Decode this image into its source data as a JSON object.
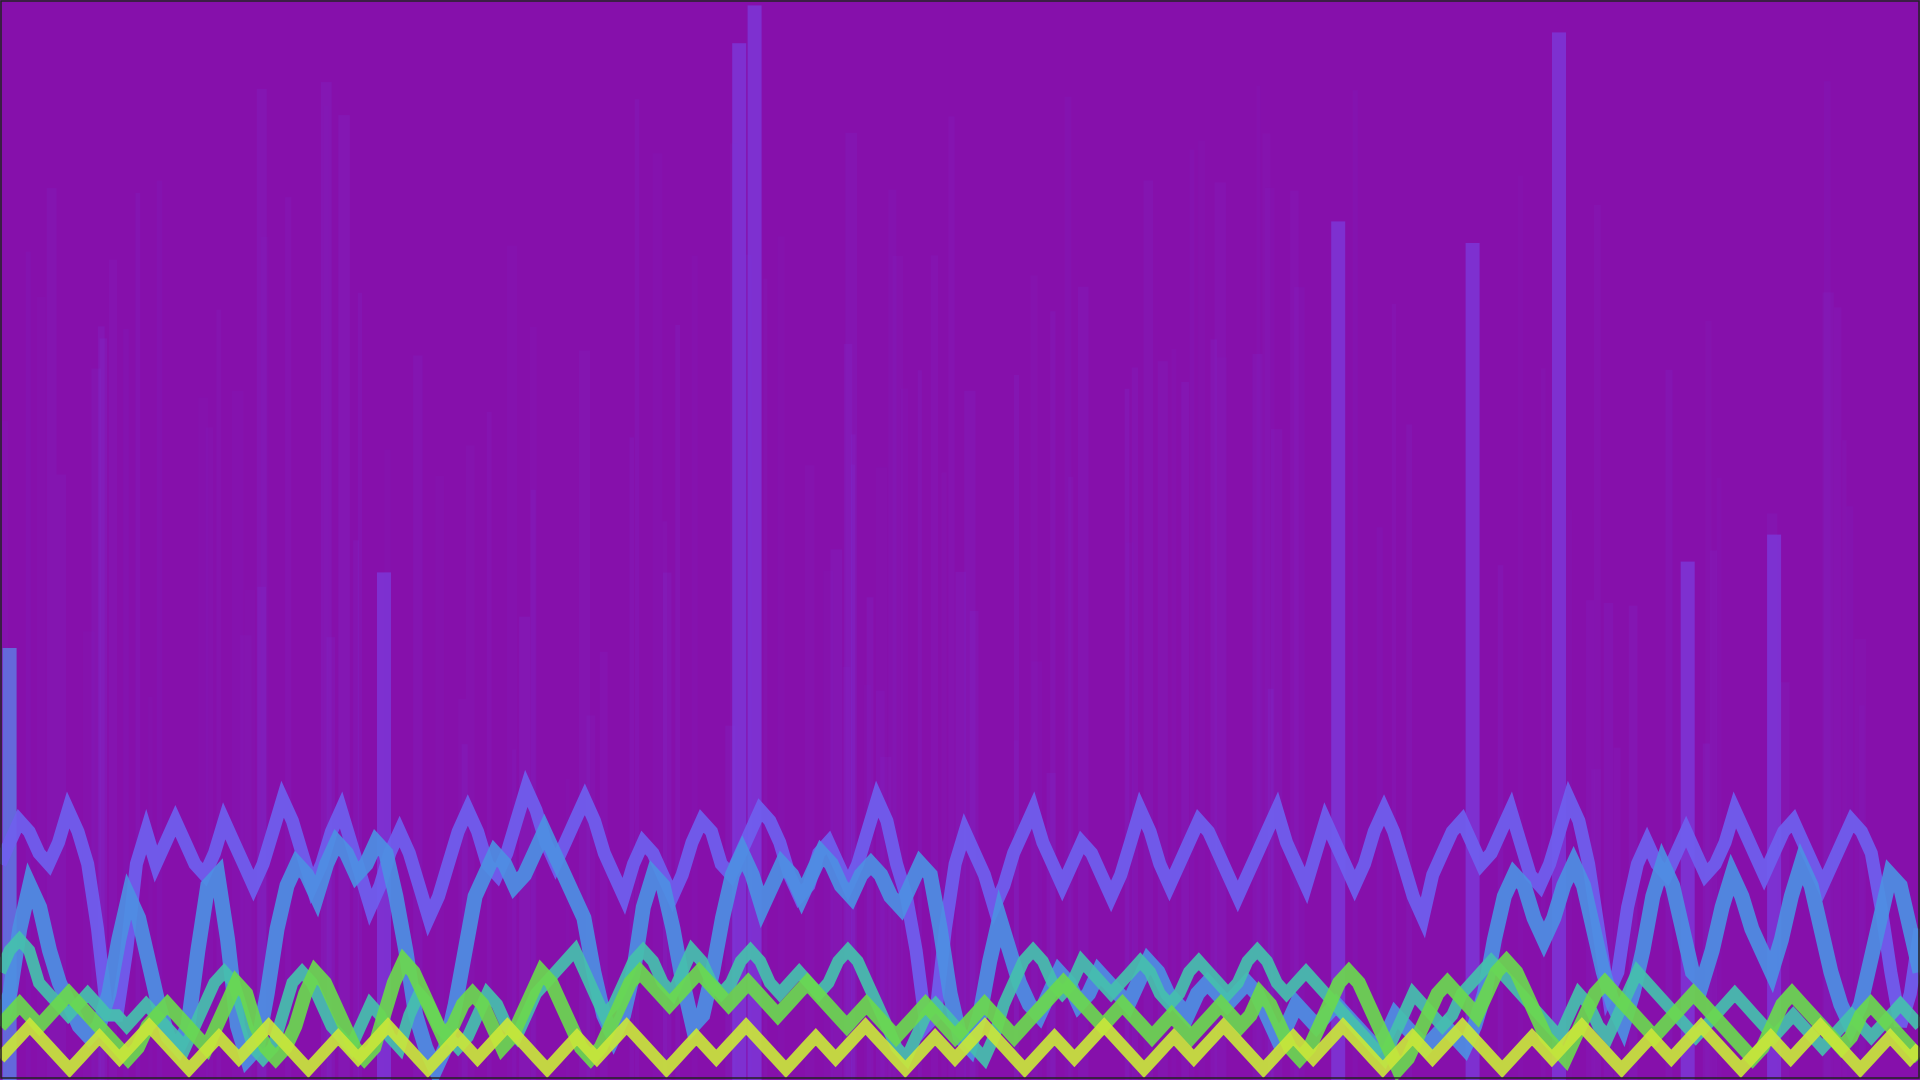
{
  "colors": {
    "background": "#8610ab",
    "frame": "#222222",
    "colormap": [
      "#7214aa",
      "#7b3bdc",
      "#6f5fee",
      "#5a86ea",
      "#3fa9d8",
      "#3cc8a2",
      "#6ae060",
      "#bfe83c"
    ]
  },
  "chart_data": {
    "type": "line",
    "title": "",
    "xlabel": "",
    "ylabel": "",
    "grid": false,
    "legend": "none",
    "x_range": [
      0,
      1
    ],
    "y_range": [
      0,
      1
    ],
    "spikes": [
      {
        "x": 0.005,
        "height": 0.4,
        "color": "#5a86ea"
      },
      {
        "x": 0.2,
        "height": 0.47,
        "color": "#7b3bdc"
      },
      {
        "x": 0.385,
        "height": 0.96,
        "color": "#7b3bdc"
      },
      {
        "x": 0.393,
        "height": 0.995,
        "color": "#7b3bdc"
      },
      {
        "x": 0.697,
        "height": 0.795,
        "color": "#7b3bdc"
      },
      {
        "x": 0.767,
        "height": 0.775,
        "color": "#7b3bdc"
      },
      {
        "x": 0.812,
        "height": 0.97,
        "color": "#7b3bdc"
      },
      {
        "x": 0.879,
        "height": 0.48,
        "color": "#7b3bdc"
      },
      {
        "x": 0.924,
        "height": 0.505,
        "color": "#7b3bdc"
      }
    ],
    "series": [
      {
        "color": "#6f5fee",
        "width": 13,
        "values": [
          0.2,
          0.22,
          0.24,
          0.23,
          0.21,
          0.2,
          0.22,
          0.25,
          0.23,
          0.2,
          0.14,
          0.06,
          0.06,
          0.12,
          0.2,
          0.23,
          0.2,
          0.22,
          0.24,
          0.22,
          0.2,
          0.19,
          0.21,
          0.24,
          0.22,
          0.2,
          0.18,
          0.2,
          0.23,
          0.26,
          0.24,
          0.21,
          0.18,
          0.2,
          0.23,
          0.25,
          0.22,
          0.19,
          0.16,
          0.18,
          0.21,
          0.23,
          0.21,
          0.18,
          0.15,
          0.17,
          0.2,
          0.23,
          0.25,
          0.23,
          0.2,
          0.19,
          0.21,
          0.24,
          0.27,
          0.25,
          0.22,
          0.2,
          0.22,
          0.24,
          0.26,
          0.24,
          0.21,
          0.19,
          0.17,
          0.2,
          0.22,
          0.21,
          0.19,
          0.17,
          0.19,
          0.22,
          0.24,
          0.23,
          0.2,
          0.19,
          0.21,
          0.23,
          0.25,
          0.24,
          0.22,
          0.19,
          0.17,
          0.18,
          0.21,
          0.22,
          0.2,
          0.18,
          0.2,
          0.23,
          0.26,
          0.24,
          0.2,
          0.17,
          0.12,
          0.05,
          0.06,
          0.14,
          0.2,
          0.23,
          0.21,
          0.19,
          0.16,
          0.18,
          0.21,
          0.23,
          0.25,
          0.22,
          0.2,
          0.18,
          0.2,
          0.22,
          0.21,
          0.19,
          0.17,
          0.19,
          0.22,
          0.25,
          0.23,
          0.2,
          0.18,
          0.2,
          0.22,
          0.24,
          0.23,
          0.21,
          0.19,
          0.17,
          0.19,
          0.21,
          0.23,
          0.25,
          0.22,
          0.2,
          0.18,
          0.21,
          0.24,
          0.22,
          0.2,
          0.18,
          0.2,
          0.23,
          0.25,
          0.23,
          0.2,
          0.17,
          0.15,
          0.19,
          0.21,
          0.23,
          0.24,
          0.22,
          0.2,
          0.21,
          0.23,
          0.25,
          0.22,
          0.19,
          0.18,
          0.2,
          0.23,
          0.26,
          0.24,
          0.2,
          0.14,
          0.08,
          0.1,
          0.16,
          0.2,
          0.22,
          0.2,
          0.19,
          0.21,
          0.23,
          0.21,
          0.19,
          0.2,
          0.22,
          0.25,
          0.23,
          0.21,
          0.19,
          0.21,
          0.23,
          0.24,
          0.22,
          0.2,
          0.18,
          0.2,
          0.22,
          0.24,
          0.23,
          0.21,
          0.16,
          0.1,
          0.05,
          0.08,
          0.14
        ]
      },
      {
        "color": "#4d8fe2",
        "width": 15,
        "values": [
          0.05,
          0.08,
          0.14,
          0.18,
          0.16,
          0.12,
          0.09,
          0.07,
          0.05,
          0.04,
          0.05,
          0.08,
          0.13,
          0.17,
          0.15,
          0.11,
          0.07,
          0.04,
          0.03,
          0.05,
          0.12,
          0.18,
          0.19,
          0.13,
          0.05,
          0.02,
          0.03,
          0.08,
          0.14,
          0.18,
          0.2,
          0.19,
          0.17,
          0.2,
          0.22,
          0.21,
          0.19,
          0.2,
          0.22,
          0.21,
          0.17,
          0.12,
          0.06,
          0.03,
          0.01,
          0.03,
          0.07,
          0.12,
          0.17,
          0.19,
          0.21,
          0.2,
          0.18,
          0.19,
          0.21,
          0.23,
          0.21,
          0.19,
          0.17,
          0.15,
          0.1,
          0.06,
          0.04,
          0.06,
          0.1,
          0.16,
          0.19,
          0.18,
          0.14,
          0.09,
          0.05,
          0.06,
          0.1,
          0.15,
          0.19,
          0.21,
          0.19,
          0.16,
          0.18,
          0.2,
          0.19,
          0.17,
          0.19,
          0.21,
          0.2,
          0.18,
          0.17,
          0.19,
          0.2,
          0.19,
          0.17,
          0.16,
          0.18,
          0.2,
          0.19,
          0.14,
          0.08,
          0.04,
          0.03,
          0.06,
          0.11,
          0.15,
          0.12,
          0.09,
          0.07,
          0.06,
          0.08,
          0.1,
          0.09,
          0.07,
          0.08,
          0.1,
          0.09,
          0.08,
          0.07,
          0.09,
          0.11,
          0.1,
          0.08,
          0.07,
          0.06,
          0.08,
          0.09,
          0.08,
          0.07,
          0.08,
          0.09,
          0.08,
          0.06,
          0.04,
          0.05,
          0.07,
          0.06,
          0.05,
          0.06,
          0.07,
          0.06,
          0.05,
          0.04,
          0.03,
          0.04,
          0.06,
          0.05,
          0.04,
          0.03,
          0.04,
          0.05,
          0.04,
          0.03,
          0.05,
          0.08,
          0.13,
          0.17,
          0.19,
          0.18,
          0.15,
          0.13,
          0.15,
          0.18,
          0.2,
          0.18,
          0.14,
          0.1,
          0.07,
          0.05,
          0.08,
          0.12,
          0.17,
          0.2,
          0.18,
          0.14,
          0.1,
          0.09,
          0.12,
          0.16,
          0.19,
          0.17,
          0.14,
          0.12,
          0.1,
          0.13,
          0.17,
          0.2,
          0.18,
          0.14,
          0.1,
          0.07,
          0.05,
          0.07,
          0.11,
          0.15,
          0.19,
          0.18,
          0.14,
          0.1
        ]
      },
      {
        "color": "#45c0ad",
        "width": 12,
        "values": [
          0.1,
          0.12,
          0.13,
          0.12,
          0.09,
          0.08,
          0.07,
          0.06,
          0.07,
          0.08,
          0.07,
          0.06,
          0.06,
          0.05,
          0.06,
          0.07,
          0.06,
          0.05,
          0.04,
          0.03,
          0.05,
          0.07,
          0.09,
          0.1,
          0.09,
          0.06,
          0.03,
          0.02,
          0.03,
          0.06,
          0.09,
          0.1,
          0.09,
          0.07,
          0.05,
          0.04,
          0.03,
          0.05,
          0.07,
          0.06,
          0.04,
          0.03,
          0.06,
          0.08,
          0.07,
          0.05,
          0.04,
          0.03,
          0.04,
          0.06,
          0.08,
          0.07,
          0.05,
          0.04,
          0.06,
          0.08,
          0.09,
          0.1,
          0.11,
          0.12,
          0.1,
          0.08,
          0.06,
          0.07,
          0.09,
          0.11,
          0.12,
          0.11,
          0.09,
          0.08,
          0.1,
          0.12,
          0.11,
          0.09,
          0.08,
          0.09,
          0.11,
          0.12,
          0.11,
          0.09,
          0.08,
          0.09,
          0.1,
          0.09,
          0.08,
          0.09,
          0.11,
          0.12,
          0.11,
          0.09,
          0.07,
          0.05,
          0.03,
          0.02,
          0.04,
          0.06,
          0.07,
          0.06,
          0.05,
          0.04,
          0.03,
          0.02,
          0.04,
          0.07,
          0.09,
          0.11,
          0.12,
          0.11,
          0.09,
          0.08,
          0.09,
          0.11,
          0.1,
          0.09,
          0.08,
          0.09,
          0.1,
          0.11,
          0.1,
          0.08,
          0.07,
          0.08,
          0.1,
          0.11,
          0.1,
          0.09,
          0.08,
          0.09,
          0.11,
          0.12,
          0.11,
          0.09,
          0.08,
          0.09,
          0.1,
          0.09,
          0.08,
          0.07,
          0.06,
          0.05,
          0.04,
          0.03,
          0.02,
          0.04,
          0.06,
          0.08,
          0.07,
          0.06,
          0.05,
          0.06,
          0.08,
          0.09,
          0.1,
          0.11,
          0.1,
          0.09,
          0.08,
          0.07,
          0.06,
          0.05,
          0.04,
          0.06,
          0.08,
          0.07,
          0.05,
          0.04,
          0.06,
          0.08,
          0.1,
          0.09,
          0.08,
          0.07,
          0.06,
          0.05,
          0.04,
          0.05,
          0.06,
          0.07,
          0.08,
          0.07,
          0.06,
          0.05,
          0.04,
          0.05,
          0.06,
          0.05,
          0.04,
          0.03,
          0.04,
          0.05,
          0.06,
          0.05,
          0.04,
          0.05,
          0.06,
          0.07,
          0.06,
          0.05
        ]
      },
      {
        "color": "#6ad84e",
        "width": 14,
        "values": [
          0.05,
          0.06,
          0.07,
          0.06,
          0.05,
          0.06,
          0.07,
          0.08,
          0.07,
          0.06,
          0.05,
          0.04,
          0.03,
          0.02,
          0.03,
          0.05,
          0.06,
          0.07,
          0.06,
          0.05,
          0.04,
          0.03,
          0.05,
          0.07,
          0.09,
          0.08,
          0.05,
          0.03,
          0.02,
          0.03,
          0.05,
          0.08,
          0.1,
          0.09,
          0.07,
          0.05,
          0.03,
          0.02,
          0.03,
          0.06,
          0.09,
          0.11,
          0.1,
          0.08,
          0.06,
          0.04,
          0.05,
          0.07,
          0.08,
          0.07,
          0.05,
          0.03,
          0.04,
          0.06,
          0.08,
          0.1,
          0.09,
          0.07,
          0.05,
          0.03,
          0.02,
          0.03,
          0.05,
          0.07,
          0.09,
          0.1,
          0.09,
          0.08,
          0.07,
          0.08,
          0.09,
          0.1,
          0.09,
          0.08,
          0.07,
          0.08,
          0.09,
          0.08,
          0.07,
          0.06,
          0.07,
          0.08,
          0.09,
          0.08,
          0.07,
          0.06,
          0.05,
          0.06,
          0.07,
          0.06,
          0.05,
          0.04,
          0.05,
          0.06,
          0.07,
          0.06,
          0.05,
          0.04,
          0.05,
          0.06,
          0.07,
          0.06,
          0.05,
          0.04,
          0.05,
          0.06,
          0.07,
          0.08,
          0.09,
          0.08,
          0.07,
          0.06,
          0.05,
          0.06,
          0.07,
          0.06,
          0.05,
          0.04,
          0.05,
          0.06,
          0.05,
          0.04,
          0.05,
          0.06,
          0.07,
          0.06,
          0.05,
          0.06,
          0.08,
          0.07,
          0.05,
          0.03,
          0.02,
          0.03,
          0.05,
          0.07,
          0.09,
          0.1,
          0.09,
          0.07,
          0.05,
          0.03,
          0.01,
          0.02,
          0.04,
          0.06,
          0.08,
          0.09,
          0.08,
          0.07,
          0.06,
          0.08,
          0.1,
          0.11,
          0.1,
          0.08,
          0.06,
          0.04,
          0.03,
          0.02,
          0.04,
          0.06,
          0.08,
          0.09,
          0.08,
          0.07,
          0.06,
          0.05,
          0.04,
          0.05,
          0.06,
          0.07,
          0.08,
          0.07,
          0.06,
          0.05,
          0.04,
          0.03,
          0.02,
          0.03,
          0.05,
          0.07,
          0.08,
          0.07,
          0.06,
          0.05,
          0.04,
          0.03,
          0.04,
          0.06,
          0.07,
          0.06,
          0.05,
          0.04,
          0.03,
          0.02
        ]
      },
      {
        "color": "#c9e63a",
        "width": 12,
        "values": [
          0.02,
          0.03,
          0.04,
          0.05,
          0.04,
          0.03,
          0.02,
          0.01,
          0.02,
          0.03,
          0.04,
          0.03,
          0.02,
          0.03,
          0.04,
          0.05,
          0.04,
          0.03,
          0.02,
          0.01,
          0.02,
          0.03,
          0.04,
          0.03,
          0.02,
          0.03,
          0.04,
          0.05,
          0.04,
          0.03,
          0.02,
          0.01,
          0.02,
          0.03,
          0.04,
          0.03,
          0.02,
          0.03,
          0.04,
          0.05,
          0.04,
          0.03,
          0.02,
          0.01,
          0.02,
          0.03,
          0.04,
          0.03,
          0.02,
          0.03,
          0.04,
          0.05,
          0.04,
          0.03,
          0.02,
          0.01,
          0.02,
          0.03,
          0.04,
          0.03,
          0.02,
          0.03,
          0.04,
          0.05,
          0.04,
          0.03,
          0.02,
          0.01,
          0.02,
          0.03,
          0.04,
          0.03,
          0.02,
          0.03,
          0.04,
          0.05,
          0.04,
          0.03,
          0.02,
          0.01,
          0.02,
          0.03,
          0.04,
          0.03,
          0.02,
          0.03,
          0.04,
          0.05,
          0.04,
          0.03,
          0.02,
          0.01,
          0.02,
          0.03,
          0.04,
          0.03,
          0.02,
          0.03,
          0.04,
          0.05,
          0.04,
          0.03,
          0.02,
          0.01,
          0.02,
          0.03,
          0.04,
          0.03,
          0.02,
          0.03,
          0.04,
          0.05,
          0.04,
          0.03,
          0.02,
          0.01,
          0.02,
          0.03,
          0.04,
          0.03,
          0.02,
          0.03,
          0.04,
          0.05,
          0.04,
          0.03,
          0.02,
          0.01,
          0.02,
          0.03,
          0.04,
          0.03,
          0.02,
          0.03,
          0.04,
          0.05,
          0.04,
          0.03,
          0.02,
          0.01,
          0.02,
          0.03,
          0.04,
          0.03,
          0.02,
          0.03,
          0.04,
          0.05,
          0.04,
          0.03,
          0.02,
          0.01,
          0.02,
          0.03,
          0.04,
          0.03,
          0.02,
          0.03,
          0.04,
          0.05,
          0.04,
          0.03,
          0.02,
          0.01,
          0.02,
          0.03,
          0.04,
          0.03,
          0.02,
          0.03,
          0.04,
          0.05,
          0.04,
          0.03,
          0.02,
          0.01,
          0.02,
          0.03,
          0.04,
          0.03,
          0.02,
          0.03,
          0.04,
          0.05,
          0.04,
          0.03,
          0.02,
          0.01,
          0.02,
          0.03,
          0.04,
          0.03,
          0.02,
          0.03
        ]
      }
    ]
  }
}
